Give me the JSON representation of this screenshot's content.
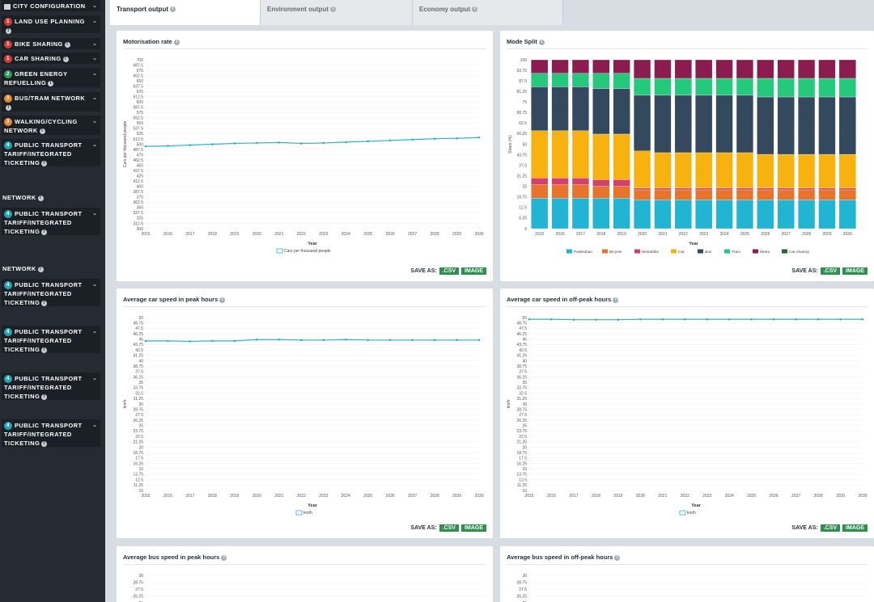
{
  "sidebar": {
    "title": "CITY CONFIGURATION",
    "items": [
      {
        "num": "1",
        "color": "red",
        "label": "LAND USE PLANNING"
      },
      {
        "num": "1",
        "color": "red",
        "label": "BIKE SHARING"
      },
      {
        "num": "1",
        "color": "red",
        "label": "CAR SHARING"
      },
      {
        "num": "2",
        "color": "green",
        "label": "GREEN ENERGY REFUELLING"
      },
      {
        "num": "3",
        "color": "orange",
        "label": "BUS/TRAM NETWORK"
      },
      {
        "num": "3",
        "color": "orange",
        "label": "WALKING/CYCLING NETWORK"
      },
      {
        "num": "4",
        "color": "teal",
        "label": "PUBLIC TRANSPORT TARIFF/INTEGRATED TICKETING"
      },
      {
        "num": "4",
        "color": "teal",
        "label": "PUBLIC TRANSPORT TARIFF/INTEGRATED TICKETING"
      },
      {
        "num": "4",
        "color": "teal",
        "label": "PUBLIC TRANSPORT TARIFF/INTEGRATED TICKETING"
      },
      {
        "num": "4",
        "color": "teal",
        "label": "PUBLIC TRANSPORT TARIFF/INTEGRATED TICKETING"
      },
      {
        "num": "4",
        "color": "teal",
        "label": "PUBLIC TRANSPORT TARIFF/INTEGRATED TICKETING"
      },
      {
        "num": "4",
        "color": "teal",
        "label": "PUBLIC TRANSPORT TARIFF/INTEGRATED TICKETING"
      }
    ],
    "network_label": "NETWORK"
  },
  "tabs": [
    {
      "label": "Transport output",
      "active": true
    },
    {
      "label": "Environment output",
      "active": false
    },
    {
      "label": "Economy output",
      "active": false
    }
  ],
  "save": {
    "label": "SAVE AS:",
    "csv": ".CSV",
    "image": "IMAGE"
  },
  "chart_data": [
    {
      "id": "motorisation",
      "type": "line",
      "title": "Motorisation rate",
      "xlabel": "Year",
      "ylabel": "Cars per thousand people",
      "ylim": [
        300,
        700
      ],
      "yticks": [
        "700",
        "687.5",
        "675",
        "662.5",
        "650",
        "637.5",
        "625",
        "612.5",
        "600",
        "587.5",
        "575",
        "562.5",
        "550",
        "537.5",
        "525",
        "512.5",
        "500",
        "487.5",
        "475",
        "462.5",
        "450",
        "437.5",
        "425",
        "412.5",
        "400",
        "387.5",
        "375",
        "362.5",
        "350",
        "337.5",
        "325",
        "312.5",
        "300"
      ],
      "x": [
        "2015",
        "2016",
        "2017",
        "2018",
        "2019",
        "2020",
        "2021",
        "2022",
        "2023",
        "2024",
        "2025",
        "2026",
        "2027",
        "2028",
        "2029",
        "2030"
      ],
      "series": [
        {
          "name": "Cars per thousand people",
          "color": "#2bb3c0",
          "values": [
            495,
            496,
            498,
            500,
            502,
            503,
            504,
            502,
            503,
            505,
            507,
            509,
            511,
            513,
            514,
            516
          ]
        }
      ]
    },
    {
      "id": "modesplit",
      "type": "bar",
      "stacked": true,
      "title": "Mode Split",
      "xlabel": "Year",
      "ylabel": "Share (%)",
      "ylim": [
        0,
        100
      ],
      "yticks": [
        "100",
        "93.75",
        "87.5",
        "81.25",
        "75",
        "68.75",
        "62.5",
        "56.25",
        "50",
        "43.75",
        "37.5",
        "31.25",
        "25",
        "18.75",
        "12.5",
        "6.25",
        "0"
      ],
      "x": [
        "2015",
        "2016",
        "2017",
        "2018",
        "2019",
        "2020",
        "2021",
        "2022",
        "2023",
        "2024",
        "2025",
        "2026",
        "2027",
        "2028",
        "2029",
        "2030"
      ],
      "series": [
        {
          "name": "Pedestrian",
          "color": "#22b5d3",
          "values": [
            18,
            18,
            18,
            18,
            18,
            17,
            17,
            17,
            17,
            17,
            17,
            17,
            17,
            17,
            17,
            17
          ]
        },
        {
          "name": "Bicycle",
          "color": "#e8732a",
          "values": [
            8,
            8,
            8,
            7,
            7,
            6,
            6,
            6,
            6,
            6,
            6,
            6,
            6,
            6,
            6,
            6
          ]
        },
        {
          "name": "Motorbike",
          "color": "#d1416b",
          "values": [
            4,
            4,
            4,
            4,
            4,
            1,
            1,
            1,
            1,
            1,
            1,
            1,
            1,
            1,
            1,
            1
          ]
        },
        {
          "name": "Car",
          "color": "#f7b20f",
          "values": [
            28,
            28,
            28,
            27,
            27,
            22,
            21,
            21,
            21,
            21,
            21,
            20,
            20,
            20,
            20,
            20
          ]
        },
        {
          "name": "Bus",
          "color": "#34495e",
          "values": [
            26,
            26,
            26,
            27,
            27,
            33,
            34,
            34,
            34,
            34,
            34,
            34,
            34,
            34,
            34,
            34
          ]
        },
        {
          "name": "Tram",
          "color": "#24c97b",
          "values": [
            8,
            8,
            8,
            9,
            9,
            10,
            10,
            10,
            10,
            10,
            10,
            11,
            11,
            11,
            11,
            11
          ]
        },
        {
          "name": "Metro",
          "color": "#8b1c4f",
          "values": [
            8,
            8,
            8,
            8,
            8,
            11,
            11,
            11,
            11,
            11,
            11,
            11,
            11,
            11,
            11,
            11
          ]
        },
        {
          "name": "Car sharing",
          "color": "#2d5e35",
          "values": [
            0,
            0,
            0,
            0,
            0,
            0,
            0,
            0,
            0,
            0,
            0,
            0,
            0,
            0,
            0,
            0
          ]
        }
      ]
    },
    {
      "id": "peak",
      "type": "line",
      "title": "Average car speed in peak hours",
      "xlabel": "Year",
      "ylabel": "km/h",
      "ylim": [
        10,
        50
      ],
      "yticks": [
        "50",
        "48.75",
        "47.5",
        "46.25",
        "45",
        "43.75",
        "42.5",
        "41.25",
        "40",
        "38.75",
        "37.5",
        "36.25",
        "35",
        "33.75",
        "32.5",
        "31.25",
        "30",
        "28.75",
        "27.5",
        "26.25",
        "25",
        "23.75",
        "22.5",
        "21.25",
        "20",
        "18.75",
        "17.5",
        "16.25",
        "15",
        "13.75",
        "12.5",
        "11.25",
        "10"
      ],
      "x": [
        "2015",
        "2016",
        "2017",
        "2018",
        "2019",
        "2020",
        "2021",
        "2022",
        "2023",
        "2024",
        "2025",
        "2026",
        "2027",
        "2028",
        "2029",
        "2030"
      ],
      "series": [
        {
          "name": "km/h",
          "color": "#2bb3c0",
          "values": [
            44.6,
            44.6,
            44.5,
            44.6,
            44.6,
            44.9,
            44.9,
            44.8,
            44.8,
            44.9,
            44.8,
            44.8,
            44.8,
            44.8,
            44.8,
            44.8
          ]
        }
      ]
    },
    {
      "id": "offpeak",
      "type": "line",
      "title": "Average car speed in off-peak hours",
      "xlabel": "Year",
      "ylabel": "km/h",
      "ylim": [
        10,
        50
      ],
      "yticks": [
        "50",
        "48.75",
        "47.5",
        "46.25",
        "45",
        "43.75",
        "42.5",
        "41.25",
        "40",
        "38.75",
        "37.5",
        "36.25",
        "35",
        "33.75",
        "32.5",
        "31.25",
        "30",
        "28.75",
        "27.5",
        "26.25",
        "25",
        "23.75",
        "22.5",
        "21.25",
        "20",
        "18.75",
        "17.5",
        "16.25",
        "15",
        "13.75",
        "12.5",
        "11.25",
        "10"
      ],
      "x": [
        "2015",
        "2016",
        "2017",
        "2018",
        "2019",
        "2020",
        "2021",
        "2022",
        "2023",
        "2024",
        "2025",
        "2026",
        "2027",
        "2028",
        "2029",
        "2030"
      ],
      "series": [
        {
          "name": "km/h",
          "color": "#2bb3c0",
          "values": [
            49.6,
            49.6,
            49.5,
            49.5,
            49.5,
            49.6,
            49.6,
            49.6,
            49.6,
            49.6,
            49.6,
            49.6,
            49.6,
            49.6,
            49.6,
            49.6
          ]
        }
      ]
    },
    {
      "id": "buspeak",
      "type": "line",
      "title": "Average bus speed in peak hours",
      "ylabel": "",
      "yticks": [
        "30",
        "28.75",
        "27.5",
        "26.25",
        "25"
      ]
    },
    {
      "id": "busoffpeak",
      "type": "line",
      "title": "Average bus speed in off-peak hours",
      "ylabel": "",
      "yticks": [
        "30",
        "28.75",
        "27.5",
        "26.25",
        "25"
      ]
    }
  ]
}
